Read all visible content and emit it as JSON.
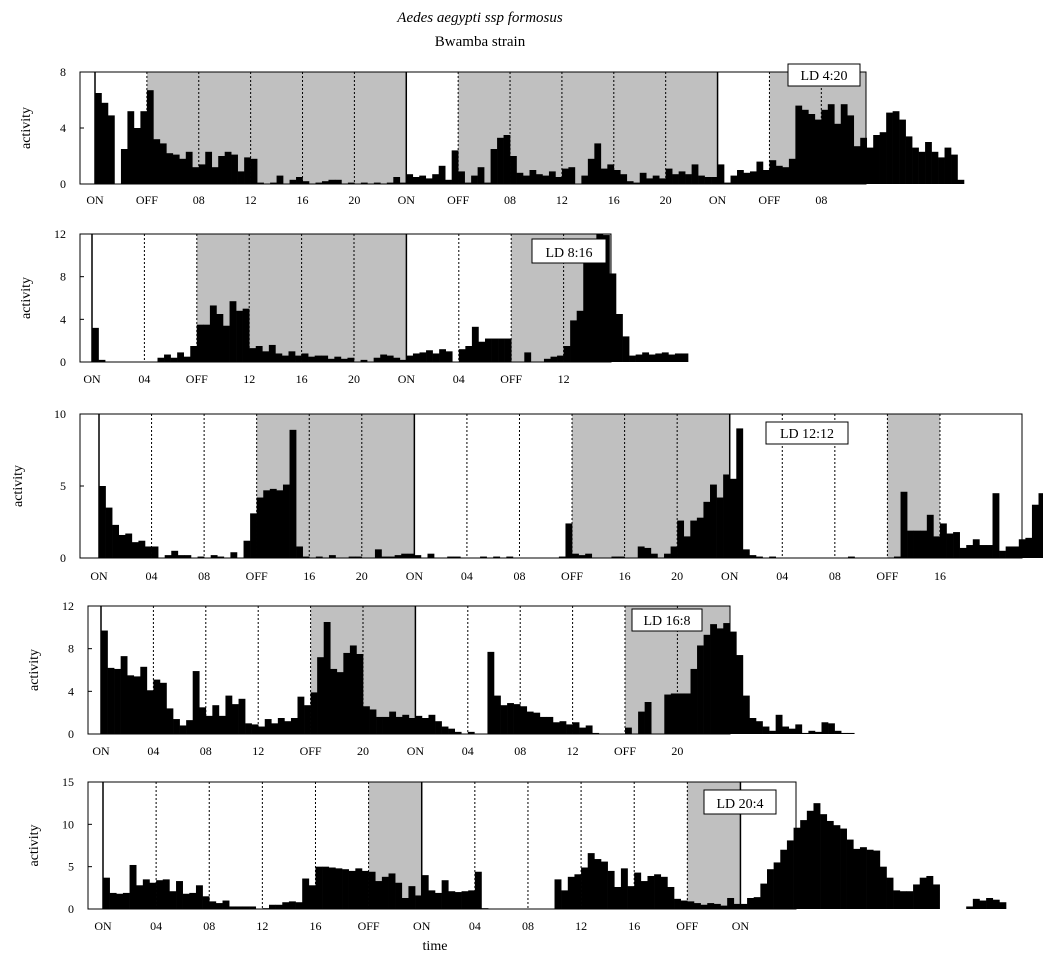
{
  "header": {
    "title": "Aedes aegypti ssp formosus",
    "subtitle": "Bwamba strain"
  },
  "chart_data": [
    {
      "type": "bar",
      "label": "LD 4:20",
      "ylabel": "activity",
      "ylim": [
        0,
        8
      ],
      "yticks": [
        0,
        4,
        8
      ],
      "x_tick_labels": [
        "ON",
        "OFF",
        "08",
        "12",
        "16",
        "20",
        "ON",
        "OFF",
        "08",
        "12",
        "16",
        "20",
        "ON",
        "OFF",
        "08"
      ],
      "dark_periods_hours": [
        [
          4,
          24
        ],
        [
          28,
          48
        ],
        [
          52,
          60.5
        ]
      ],
      "hours_shown": 60.5,
      "bin_hours": 0.5,
      "values": [
        6.5,
        5.8,
        4.9,
        0,
        2.5,
        5.2,
        4,
        5.2,
        6.7,
        3.2,
        2.9,
        2.2,
        2.1,
        1.8,
        2.3,
        1.2,
        1.4,
        2.3,
        1.2,
        2,
        2.3,
        2.1,
        0.9,
        1.9,
        1.8,
        0.1,
        0,
        0.1,
        0.6,
        0,
        0.3,
        0.5,
        0.2,
        0,
        0.1,
        0.2,
        0.3,
        0.3,
        0,
        0.1,
        0,
        0.1,
        0,
        0.1,
        0,
        0.1,
        0.5,
        0.1,
        0.7,
        0.5,
        0.6,
        0.4,
        0.7,
        1.3,
        0.3,
        2.4,
        0.9,
        0.1,
        0.6,
        1.2,
        0.1,
        2.5,
        3.3,
        3.5,
        2,
        0.8,
        0.6,
        1,
        0.7,
        0.6,
        0.9,
        0.5,
        1.1,
        1.2,
        0,
        0.6,
        1.8,
        2.9,
        1.1,
        1.4,
        1,
        0.7,
        0.2,
        0.1,
        0.8,
        0.4,
        0.6,
        0.4,
        1.1,
        0.7,
        0.9,
        0.7,
        1.4,
        0.6,
        0.5,
        0.5,
        1.4,
        0.1,
        0.6,
        1,
        0.8,
        0.9,
        1.6,
        1,
        1.7,
        1.3,
        1.2,
        1.8,
        5.6,
        5.3,
        5,
        4.6,
        5.3,
        5.7,
        4.3,
        5.7,
        4.9,
        2.7,
        3.3,
        2.6,
        3.5,
        3.7,
        5.1,
        5.2,
        4.6,
        3.4,
        2.6,
        2.3,
        3,
        2.3,
        1.9,
        2.6,
        2.1,
        0.3
      ]
    },
    {
      "type": "bar",
      "label": "LD 8:16",
      "ylabel": "activity",
      "ylim": [
        0,
        12
      ],
      "yticks": [
        0,
        4,
        8,
        12
      ],
      "x_tick_labels": [
        "ON",
        "04",
        "OFF",
        "12",
        "16",
        "20",
        "ON",
        "04",
        "OFF",
        "12"
      ],
      "dark_periods_hours": [
        [
          8,
          24
        ],
        [
          32,
          40.5
        ]
      ],
      "hours_shown": 40.5,
      "bin_hours": 0.5,
      "values": [
        3.2,
        0.2,
        0,
        0,
        0,
        0,
        0,
        0,
        0,
        0,
        0.4,
        0.7,
        0.4,
        0.9,
        0.5,
        1.5,
        3.5,
        3.5,
        5.3,
        4.5,
        3.4,
        5.7,
        4.8,
        5,
        1.3,
        1.5,
        1,
        1.6,
        0.8,
        0.6,
        1,
        0.6,
        0.8,
        0.5,
        0.6,
        0.6,
        0.3,
        0.5,
        0.3,
        0.4,
        0,
        0.2,
        0,
        0.4,
        0.7,
        0.6,
        0.4,
        0.2,
        0.6,
        0.8,
        0.9,
        1.1,
        0.8,
        1.2,
        1,
        0,
        1.2,
        1.5,
        3.3,
        1.9,
        2.2,
        2.2,
        2.2,
        2.2,
        0,
        0,
        0.9,
        0,
        0,
        0.3,
        0.5,
        0.6,
        1.5,
        3.9,
        4.8,
        9.5,
        10.7,
        12.3,
        11.9,
        8.3,
        4.5,
        2.4,
        0.6,
        0.7,
        0.9,
        0.7,
        0.8,
        0.9,
        0.7,
        0.8,
        0.8
      ]
    },
    {
      "type": "bar",
      "label": "LD 12:12",
      "ylabel": "activity",
      "ylim": [
        0,
        10
      ],
      "yticks": [
        0,
        5,
        10
      ],
      "x_tick_labels": [
        "ON",
        "04",
        "08",
        "OFF",
        "16",
        "20",
        "ON",
        "04",
        "08",
        "OFF",
        "16",
        "20",
        "ON",
        "04",
        "08",
        "OFF",
        "16"
      ],
      "dark_periods_hours": [
        [
          12,
          24
        ],
        [
          36,
          48
        ],
        [
          60,
          64
        ]
      ],
      "hours_shown": 70,
      "bin_hours": 0.5,
      "values": [
        5,
        3.5,
        2.3,
        1.6,
        1.7,
        1.1,
        1.2,
        0.8,
        0.8,
        0,
        0.2,
        0.5,
        0.2,
        0.2,
        0,
        0.1,
        0,
        0.2,
        0.1,
        0,
        0.4,
        0,
        1.2,
        3.1,
        4.2,
        4.7,
        4.8,
        4.7,
        5.1,
        8.9,
        0.8,
        0.1,
        0,
        0.1,
        0,
        0.2,
        0,
        0,
        0.1,
        0.1,
        0,
        0,
        0.6,
        0.1,
        0.1,
        0.2,
        0.3,
        0.3,
        0.2,
        0,
        0.3,
        0,
        0,
        0.1,
        0.1,
        0,
        0,
        0,
        0.1,
        0,
        0.1,
        0,
        0.1,
        0,
        0,
        0,
        0,
        0,
        0,
        0,
        0.1,
        2.4,
        0.3,
        0.2,
        0.3,
        0,
        0,
        0,
        0.1,
        0.1,
        0,
        0,
        0.8,
        0.7,
        0.3,
        0,
        0.3,
        0.8,
        2.6,
        1.5,
        2.6,
        2.8,
        3.9,
        5.1,
        4.2,
        5.8,
        5.5,
        9,
        0.6,
        0.2,
        0.1,
        0,
        0.1,
        0,
        0,
        0,
        0,
        0,
        0,
        0,
        0,
        0,
        0,
        0,
        0.1,
        0,
        0,
        0,
        0,
        0,
        0,
        0.1,
        4.6,
        1.9,
        1.9,
        1.9,
        3,
        1.5,
        2.4,
        1.7,
        1.8,
        0.7,
        0.9,
        1.3,
        0.9,
        0.9,
        4.5,
        0.5,
        0.8,
        0.8,
        1.3,
        1.4,
        3.7,
        4.5,
        7.4,
        8.9,
        7.5,
        7.5,
        3.5,
        0.4,
        0.3,
        0.6,
        0.3,
        0.1,
        0.2,
        0.1,
        0,
        0,
        0,
        0,
        0,
        0.8,
        0,
        0,
        0,
        0,
        0.2,
        0,
        0,
        0,
        0,
        0
      ]
    },
    {
      "type": "bar",
      "label": "LD 16:8",
      "ylabel": "activity",
      "ylim": [
        0,
        12
      ],
      "yticks": [
        0,
        4,
        8,
        12
      ],
      "x_tick_labels": [
        "ON",
        "04",
        "08",
        "12",
        "OFF",
        "20",
        "ON",
        "04",
        "08",
        "12",
        "OFF",
        "20"
      ],
      "dark_periods_hours": [
        [
          16,
          24
        ],
        [
          40,
          48
        ]
      ],
      "hours_shown": 48,
      "bin_hours": 0.5,
      "values": [
        9.7,
        6.2,
        6.1,
        7.3,
        5.5,
        5.4,
        6.3,
        4.1,
        5.1,
        4.8,
        2.4,
        1.4,
        0.8,
        1.3,
        5.9,
        2.5,
        1.7,
        2.7,
        1.7,
        3.6,
        2.8,
        3.3,
        1,
        0.9,
        0.7,
        1.4,
        1,
        1.5,
        1.2,
        1.5,
        3.5,
        2.7,
        3.9,
        7.2,
        10.5,
        6.1,
        5.8,
        7.6,
        8.3,
        7.5,
        2.6,
        2.3,
        1.6,
        1.6,
        2.1,
        1.6,
        1.8,
        1.5,
        1.7,
        1.5,
        1.8,
        1.2,
        0.7,
        0.5,
        0.2,
        0,
        0.2,
        0,
        0,
        7.7,
        3.6,
        2.7,
        2.9,
        2.8,
        2.6,
        2.1,
        2,
        1.6,
        1.6,
        1.1,
        1.2,
        0.9,
        1.1,
        0.6,
        0.8,
        0.1,
        0,
        0,
        0,
        0,
        0.6,
        0,
        2.1,
        3,
        0,
        0,
        3.7,
        3.8,
        3.8,
        3.8,
        6.1,
        8.3,
        9.3,
        10.3,
        9.9,
        10.4,
        9.6,
        7.4,
        3.6,
        1.5,
        1.2,
        0.7,
        0.3,
        1.8,
        0.7,
        0.5,
        0.9,
        0.1,
        0.3,
        0.2,
        1.1,
        1,
        0.3,
        0.1,
        0.1,
        0,
        0,
        0
      ]
    },
    {
      "type": "bar",
      "label": "LD 20:4",
      "ylabel": "activity",
      "xlabel": "time",
      "ylim": [
        0,
        15
      ],
      "yticks": [
        0,
        5,
        10,
        15
      ],
      "x_tick_labels": [
        "ON",
        "04",
        "08",
        "12",
        "16",
        "OFF",
        "ON",
        "04",
        "08",
        "12",
        "16",
        "OFF",
        "ON"
      ],
      "dark_periods_hours": [
        [
          20,
          24
        ],
        [
          44,
          48
        ]
      ],
      "hours_shown": 52,
      "bin_hours": 0.5,
      "values": [
        3.7,
        1.9,
        1.8,
        1.9,
        5.2,
        2.8,
        3.5,
        3.1,
        3.4,
        3.5,
        2.1,
        3.3,
        1.8,
        1.9,
        2.8,
        1.5,
        0.9,
        0.7,
        1,
        0.3,
        0.3,
        0.3,
        0.3,
        0,
        0.1,
        0.5,
        0.5,
        0.8,
        0.9,
        0.8,
        3.6,
        2.8,
        5,
        5,
        4.9,
        4.8,
        4.7,
        4.5,
        4.8,
        4.5,
        4.4,
        3.3,
        3.8,
        4.2,
        3.1,
        1.3,
        2.7,
        1.6,
        4,
        2.2,
        1.9,
        3.4,
        2.1,
        2,
        2.1,
        2.2,
        4.4,
        0.1,
        0,
        0,
        0,
        0,
        0,
        0,
        0,
        0,
        0,
        0,
        3.5,
        2.2,
        3.8,
        4.1,
        4.9,
        6.6,
        5.9,
        5.6,
        4.5,
        2.6,
        4.8,
        2.7,
        4.3,
        3.3,
        3.9,
        4.1,
        3.8,
        2.6,
        1.2,
        1,
        0.9,
        0.7,
        0.5,
        0.7,
        0.6,
        0.4,
        1.3,
        0.6,
        0.6,
        1.3,
        1.4,
        3,
        4.7,
        5.5,
        7,
        8.1,
        9.6,
        10.5,
        11.6,
        12.5,
        11.2,
        10.4,
        9.9,
        9.5,
        8.2,
        7.1,
        7.3,
        7,
        6.9,
        5,
        3.7,
        2.2,
        2.1,
        2.1,
        2.9,
        3.7,
        3.9,
        2.9,
        0,
        0,
        0,
        0,
        0.3,
        1.2,
        1,
        1.3,
        1.1,
        0.8
      ]
    }
  ]
}
